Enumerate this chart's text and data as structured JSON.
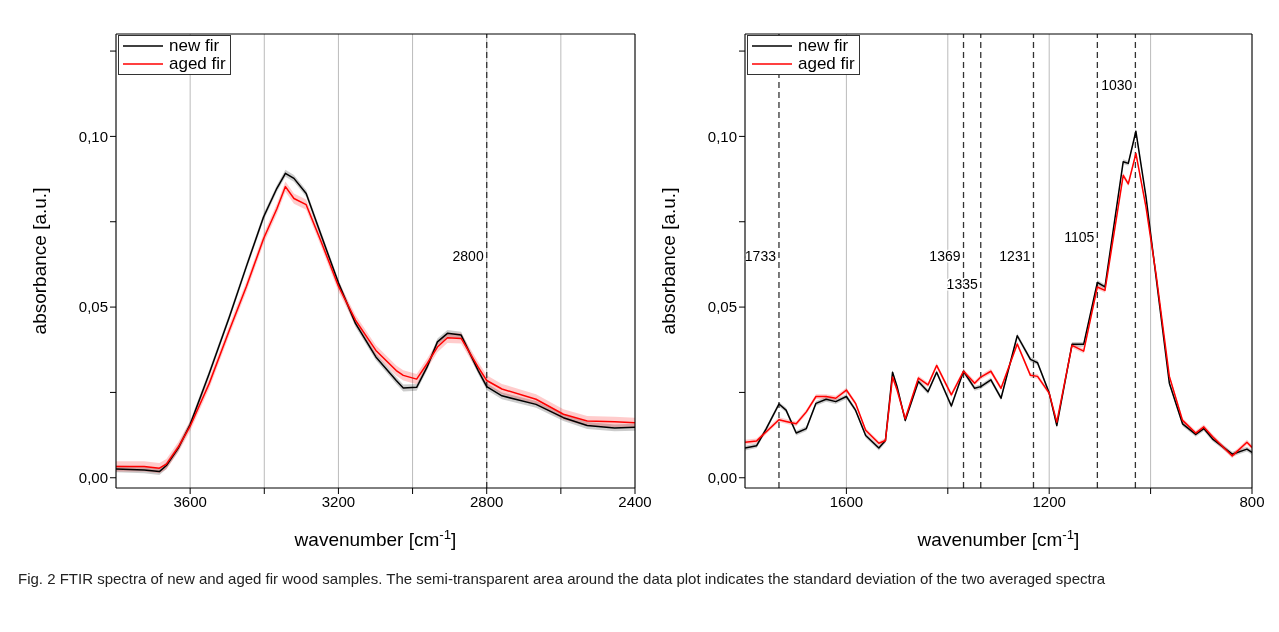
{
  "chart_data": [
    {
      "type": "line",
      "xlabel": "wavenumber [cm$^{-1}$]",
      "ylabel": "absorbance [a.u.]",
      "xlim": [
        3800,
        2400
      ],
      "ylim": [
        -0.003,
        0.13
      ],
      "xticks": [
        3600,
        {
          "value": 3400,
          "label": null
        },
        3200,
        {
          "value": 3000,
          "label": null
        },
        2800,
        {
          "value": 2600,
          "label": null
        },
        2400
      ],
      "yticks": [
        {
          "value": 0,
          "label": "0,00"
        },
        {
          "value": 0.025,
          "label": null
        },
        {
          "value": 0.05,
          "label": "0,05"
        },
        {
          "value": 0.075,
          "label": null
        },
        {
          "value": 0.1,
          "label": "0,10"
        },
        {
          "value": 0.125,
          "label": null
        }
      ],
      "grid": "x",
      "legend": "top left",
      "line_style": "solid",
      "marker": "none",
      "x": [
        3800,
        3724,
        3683,
        3664,
        3632,
        3600,
        3549,
        3494,
        3448,
        3402,
        3366,
        3343,
        3320,
        3287,
        3246,
        3200,
        3154,
        3099,
        3044,
        3025,
        2989,
        2961,
        2933,
        2906,
        2869,
        2823,
        2800,
        2759,
        2667,
        2593,
        2529,
        2455,
        2400
      ],
      "series": [
        {
          "name": "new fir",
          "color": "#000000",
          "values": [
            0.0026,
            0.0023,
            0.0018,
            0.0036,
            0.0087,
            0.0156,
            0.0304,
            0.0472,
            0.062,
            0.0764,
            0.0848,
            0.0892,
            0.0877,
            0.0833,
            0.0709,
            0.0571,
            0.0452,
            0.0354,
            0.0285,
            0.0263,
            0.0265,
            0.0324,
            0.0398,
            0.0423,
            0.0418,
            0.0314,
            0.0267,
            0.024,
            0.0215,
            0.0176,
            0.0153,
            0.0146,
            0.0148
          ],
          "lower": [
            0.0016,
            0.0013,
            0.0008,
            0.0026,
            0.0077,
            0.0146,
            0.0294,
            0.0462,
            0.061,
            0.0754,
            0.0838,
            0.0882,
            0.0867,
            0.0823,
            0.0699,
            0.0561,
            0.0442,
            0.0344,
            0.0275,
            0.0253,
            0.0255,
            0.0314,
            0.0388,
            0.0413,
            0.0408,
            0.0304,
            0.0257,
            0.023,
            0.0205,
            0.0166,
            0.0143,
            0.0136,
            0.0138
          ],
          "upper": [
            0.0036,
            0.0033,
            0.0028,
            0.0046,
            0.0097,
            0.0166,
            0.0314,
            0.0482,
            0.063,
            0.0774,
            0.0858,
            0.0902,
            0.0887,
            0.0843,
            0.0719,
            0.0581,
            0.0462,
            0.0364,
            0.0295,
            0.0273,
            0.0275,
            0.0334,
            0.0408,
            0.0433,
            0.0428,
            0.0324,
            0.0277,
            0.025,
            0.0225,
            0.0186,
            0.0163,
            0.0156,
            0.0158
          ]
        },
        {
          "name": "aged fir",
          "color": "#ff0000",
          "values": [
            0.0033,
            0.0033,
            0.0028,
            0.004,
            0.009,
            0.0151,
            0.0275,
            0.0433,
            0.0561,
            0.07,
            0.0788,
            0.0853,
            0.0818,
            0.08,
            0.069,
            0.0561,
            0.0462,
            0.0373,
            0.0314,
            0.03,
            0.0289,
            0.0334,
            0.0383,
            0.041,
            0.0408,
            0.0324,
            0.0285,
            0.026,
            0.023,
            0.0186,
            0.0166,
            0.0164,
            0.0161
          ],
          "lower": [
            0.0018,
            0.0018,
            0.0013,
            0.0025,
            0.0075,
            0.0136,
            0.026,
            0.0418,
            0.0546,
            0.0685,
            0.0773,
            0.0838,
            0.0803,
            0.0785,
            0.0675,
            0.0546,
            0.0447,
            0.0358,
            0.0299,
            0.0285,
            0.0274,
            0.0319,
            0.0368,
            0.0395,
            0.0393,
            0.0309,
            0.027,
            0.0245,
            0.0215,
            0.0171,
            0.0151,
            0.0149,
            0.0146
          ],
          "upper": [
            0.0048,
            0.0048,
            0.0043,
            0.0055,
            0.0105,
            0.0166,
            0.029,
            0.0448,
            0.0576,
            0.0715,
            0.0803,
            0.0868,
            0.0833,
            0.0815,
            0.0705,
            0.0576,
            0.0477,
            0.0388,
            0.0329,
            0.0315,
            0.0304,
            0.0349,
            0.0398,
            0.0425,
            0.0423,
            0.0339,
            0.03,
            0.0275,
            0.0245,
            0.0201,
            0.0181,
            0.0179,
            0.0176
          ]
        }
      ],
      "ref_lines": [
        {
          "axis": "x",
          "value": 2800,
          "label": "2800",
          "color": "#333333",
          "line_style": "dashed"
        }
      ],
      "annotations": [
        "Fig. 2  FTIR spectra of new and aged fir wood samples. The semi-transparent area around the data plot indicates the standard deviation of the two averaged spectra"
      ]
    },
    {
      "type": "line",
      "xlabel": "wavenumber [cm$^{-1}$]",
      "ylabel": "absorbance [a.u.]",
      "xlim": [
        1800,
        800
      ],
      "ylim": [
        -0.003,
        0.13
      ],
      "xticks": [
        1600,
        {
          "value": 1400,
          "label": null
        },
        1200,
        {
          "value": 1000,
          "label": null
        },
        800
      ],
      "yticks": [
        {
          "value": 0,
          "label": "0,00"
        },
        {
          "value": 0.025,
          "label": null
        },
        {
          "value": 0.05,
          "label": "0,05"
        },
        {
          "value": 0.075,
          "label": null
        },
        {
          "value": 0.1,
          "label": "0,10"
        },
        {
          "value": 0.125,
          "label": null
        }
      ],
      "grid": "x",
      "legend": "top left",
      "line_style": "solid",
      "marker": "none",
      "x": [
        1800,
        1777,
        1758,
        1733,
        1719,
        1699,
        1679,
        1660,
        1640,
        1621,
        1600,
        1582,
        1562,
        1536,
        1523,
        1509,
        1500,
        1484,
        1458,
        1439,
        1422,
        1393,
        1369,
        1347,
        1335,
        1315,
        1295,
        1263,
        1237,
        1223,
        1200,
        1185,
        1155,
        1132,
        1105,
        1090,
        1054,
        1044,
        1029,
        1009,
        989,
        963,
        937,
        911,
        895,
        878,
        839,
        810,
        800
      ],
      "series": [
        {
          "name": "new fir",
          "color": "#000000",
          "values": [
            0.0087,
            0.0094,
            0.0144,
            0.0216,
            0.0198,
            0.0131,
            0.0144,
            0.0218,
            0.023,
            0.0223,
            0.0238,
            0.0198,
            0.0124,
            0.0087,
            0.0109,
            0.0309,
            0.0267,
            0.0168,
            0.0282,
            0.0252,
            0.0309,
            0.021,
            0.0312,
            0.0262,
            0.0267,
            0.0287,
            0.0233,
            0.0416,
            0.0347,
            0.0337,
            0.0248,
            0.0153,
            0.0391,
            0.0391,
            0.0572,
            0.0559,
            0.0926,
            0.0921,
            0.1015,
            0.0822,
            0.0585,
            0.0277,
            0.0158,
            0.0127,
            0.0144,
            0.0114,
            0.0069,
            0.0084,
            0.0074
          ],
          "lower": [
            0.008,
            0.0087,
            0.0137,
            0.0209,
            0.0191,
            0.0124,
            0.0137,
            0.0211,
            0.0223,
            0.0216,
            0.0231,
            0.0191,
            0.0117,
            0.008,
            0.0102,
            0.0302,
            0.026,
            0.0161,
            0.0275,
            0.0245,
            0.0302,
            0.0203,
            0.0305,
            0.0255,
            0.026,
            0.028,
            0.0226,
            0.0409,
            0.034,
            0.033,
            0.0241,
            0.0146,
            0.0384,
            0.0384,
            0.0565,
            0.0552,
            0.0919,
            0.0914,
            0.1008,
            0.0815,
            0.0587,
            0.027,
            0.0151,
            0.012,
            0.0137,
            0.0107,
            0.0062,
            0.0077,
            0.0067
          ],
          "upper": [
            0.0094,
            0.0101,
            0.0151,
            0.0223,
            0.0205,
            0.0138,
            0.0151,
            0.0225,
            0.0237,
            0.023,
            0.0245,
            0.0205,
            0.0131,
            0.0094,
            0.0116,
            0.0316,
            0.0274,
            0.0175,
            0.0289,
            0.0259,
            0.0316,
            0.0217,
            0.0319,
            0.0269,
            0.0274,
            0.0294,
            0.024,
            0.0423,
            0.0354,
            0.0344,
            0.0255,
            0.016,
            0.0398,
            0.0398,
            0.0579,
            0.0566,
            0.0933,
            0.0928,
            0.1022,
            0.0829,
            0.0601,
            0.0284,
            0.0165,
            0.0134,
            0.0151,
            0.0121,
            0.0076,
            0.0091,
            0.0081
          ]
        },
        {
          "name": "aged fir",
          "color": "#ff0000",
          "values": [
            0.0104,
            0.0108,
            0.0135,
            0.017,
            0.0165,
            0.0158,
            0.0193,
            0.0238,
            0.0238,
            0.0233,
            0.0257,
            0.0218,
            0.0139,
            0.0101,
            0.0109,
            0.0295,
            0.0257,
            0.0173,
            0.0292,
            0.0272,
            0.0329,
            0.0243,
            0.0312,
            0.0277,
            0.0295,
            0.0312,
            0.0262,
            0.0392,
            0.03,
            0.0297,
            0.0248,
            0.0163,
            0.0388,
            0.0371,
            0.0559,
            0.0549,
            0.0886,
            0.0861,
            0.095,
            0.0792,
            0.0594,
            0.0297,
            0.0168,
            0.0131,
            0.0149,
            0.0121,
            0.0064,
            0.0104,
            0.0089
          ],
          "lower": [
            0.0097,
            0.0101,
            0.0128,
            0.0163,
            0.0158,
            0.0151,
            0.0186,
            0.0231,
            0.0231,
            0.0226,
            0.025,
            0.0211,
            0.0132,
            0.0094,
            0.0102,
            0.0288,
            0.025,
            0.0166,
            0.0285,
            0.0265,
            0.0322,
            0.0236,
            0.0305,
            0.027,
            0.0288,
            0.0305,
            0.0255,
            0.0385,
            0.0293,
            0.029,
            0.0241,
            0.0156,
            0.0381,
            0.0364,
            0.0552,
            0.0542,
            0.0879,
            0.0854,
            0.0943,
            0.0785,
            0.0587,
            0.029,
            0.0161,
            0.0124,
            0.0142,
            0.0114,
            0.0057,
            0.0097,
            0.0082
          ],
          "upper": [
            0.0111,
            0.0115,
            0.0142,
            0.0177,
            0.0172,
            0.0165,
            0.02,
            0.0245,
            0.0245,
            0.024,
            0.0264,
            0.0225,
            0.0146,
            0.0108,
            0.0116,
            0.0302,
            0.0264,
            0.018,
            0.0299,
            0.0279,
            0.0336,
            0.025,
            0.0319,
            0.0284,
            0.0302,
            0.0319,
            0.0269,
            0.0399,
            0.0307,
            0.0304,
            0.0255,
            0.017,
            0.0395,
            0.0378,
            0.0566,
            0.0556,
            0.0893,
            0.0868,
            0.0957,
            0.0799,
            0.0601,
            0.0304,
            0.0175,
            0.0138,
            0.0156,
            0.0128,
            0.0071,
            0.0111,
            0.0096
          ]
        }
      ],
      "ref_lines": [
        {
          "axis": "x",
          "value": 1733,
          "label": "1733",
          "color": "#333333",
          "line_style": "dashed"
        },
        {
          "axis": "x",
          "value": 1369,
          "label": "1369",
          "color": "#333333",
          "line_style": "dashed"
        },
        {
          "axis": "x",
          "value": 1335,
          "label": "1335",
          "color": "#333333",
          "line_style": "dashed"
        },
        {
          "axis": "x",
          "value": 1231,
          "label": "1231",
          "color": "#333333",
          "line_style": "dashed"
        },
        {
          "axis": "x",
          "value": 1105,
          "label": "1105",
          "color": "#333333",
          "line_style": "dashed"
        },
        {
          "axis": "x",
          "value": 1030,
          "label": "1030",
          "color": "#333333",
          "line_style": "dashed"
        }
      ]
    }
  ]
}
